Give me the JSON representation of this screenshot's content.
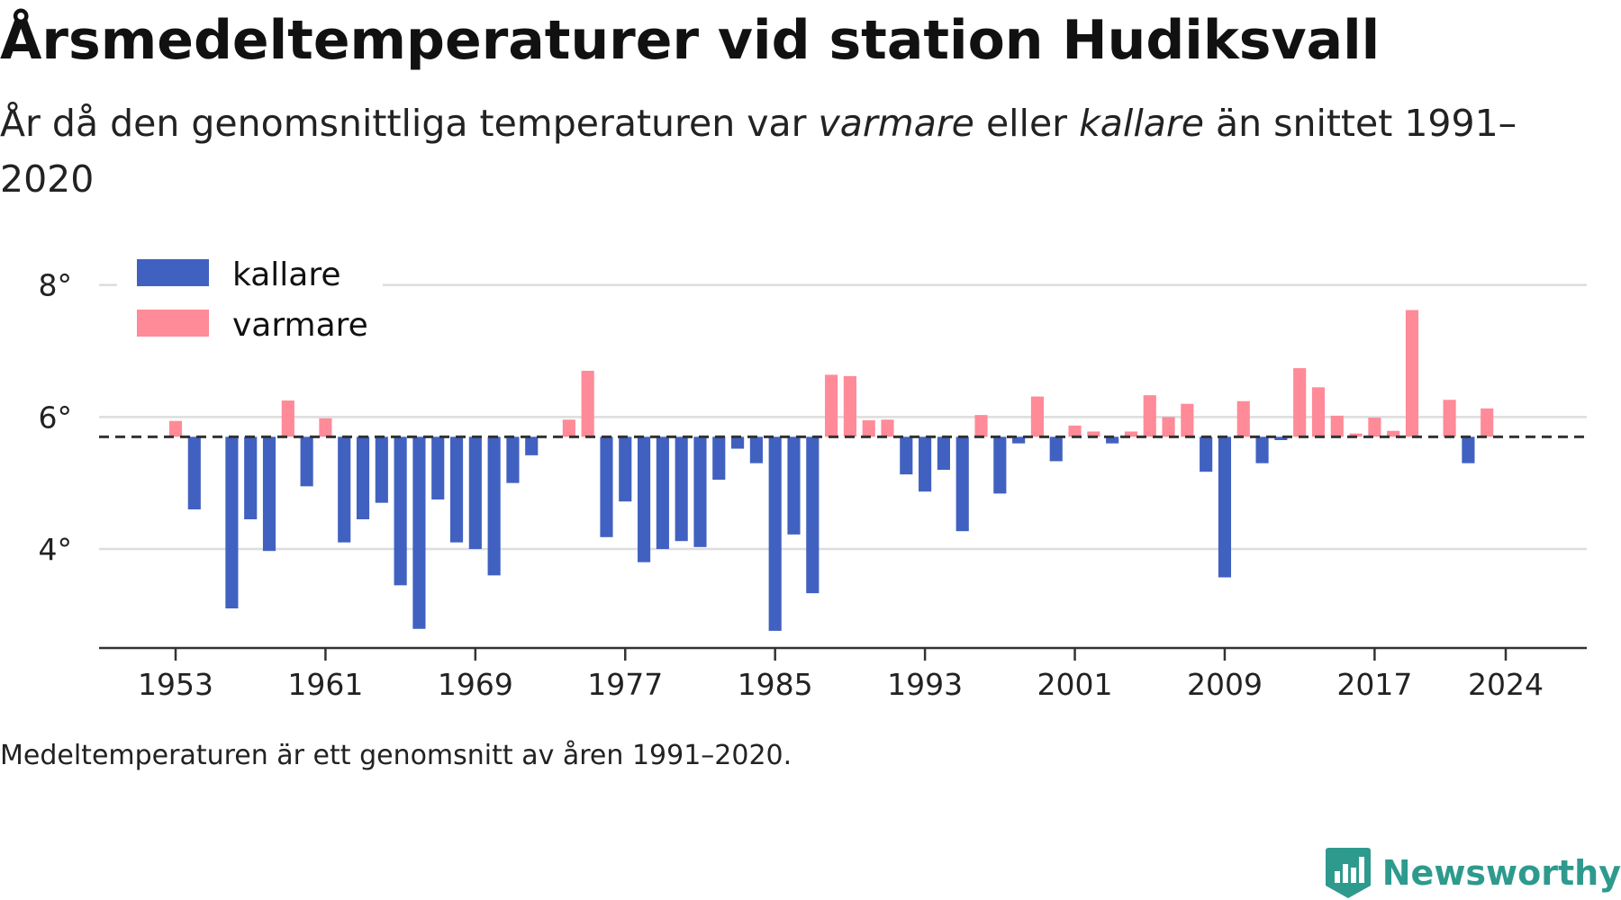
{
  "title": "Årsmedeltemperaturer vid station Hudiksvall",
  "subtitle": {
    "part1": "År då den genomsnittliga temperaturen var ",
    "warm_word": "varmare",
    "part2": " eller ",
    "cold_word": "kallare",
    "part3": " än snittet 1991–2020"
  },
  "footnote": "Medeltemperaturen är ett genomsnitt av åren 1991–2020.",
  "brand": "Newsworthy",
  "colors": {
    "colder": "#4161c1",
    "warmer": "#ff8a98",
    "grid": "#dddddd",
    "axis": "#333333",
    "baseline": "#333333",
    "brand": "#2e9a8e"
  },
  "icons": {
    "brand": "newsworthy-logo-icon"
  },
  "chart_data": {
    "type": "bar",
    "baseline": 5.7,
    "ylim": [
      2.5,
      8.5
    ],
    "yticks": [
      4,
      6,
      8
    ],
    "ytick_labels": [
      "4°",
      "6°",
      "8°"
    ],
    "xticks": [
      1953,
      1961,
      1969,
      1977,
      1985,
      1993,
      2001,
      2009,
      2017,
      2024
    ],
    "xtick_labels": [
      "1953",
      "1961",
      "1969",
      "1977",
      "1985",
      "1993",
      "2001",
      "2009",
      "2017",
      "2024"
    ],
    "grid": true,
    "legend_position": "top-left",
    "legend": [
      {
        "label": "kallare",
        "color": "#4161c1"
      },
      {
        "label": "varmare",
        "color": "#ff8a98"
      }
    ],
    "x": [
      1953,
      1954,
      1955,
      1956,
      1957,
      1958,
      1959,
      1960,
      1961,
      1962,
      1963,
      1964,
      1965,
      1966,
      1967,
      1968,
      1969,
      1970,
      1971,
      1972,
      1973,
      1974,
      1975,
      1976,
      1977,
      1978,
      1979,
      1980,
      1981,
      1982,
      1983,
      1984,
      1985,
      1986,
      1987,
      1988,
      1989,
      1990,
      1991,
      1992,
      1993,
      1994,
      1995,
      1996,
      1997,
      1998,
      1999,
      2000,
      2001,
      2002,
      2003,
      2004,
      2005,
      2006,
      2007,
      2008,
      2009,
      2010,
      2011,
      2012,
      2013,
      2014,
      2015,
      2016,
      2017,
      2018,
      2019,
      2020,
      2021,
      2022,
      2023,
      2024
    ],
    "values": [
      5.94,
      4.6,
      null,
      3.1,
      4.45,
      3.97,
      6.25,
      4.95,
      5.98,
      4.1,
      4.45,
      4.7,
      3.45,
      2.79,
      4.75,
      4.1,
      4.0,
      3.6,
      5.0,
      5.42,
      null,
      5.96,
      6.7,
      4.18,
      4.72,
      3.8,
      4.0,
      4.12,
      4.03,
      5.05,
      5.52,
      5.3,
      2.76,
      4.22,
      3.33,
      6.64,
      6.62,
      5.95,
      5.96,
      5.13,
      4.87,
      5.2,
      4.27,
      6.03,
      4.84,
      5.6,
      6.31,
      5.33,
      5.87,
      5.78,
      5.6,
      5.78,
      6.33,
      6.0,
      6.2,
      5.17,
      3.57,
      6.24,
      5.3,
      5.65,
      6.74,
      6.45,
      6.02,
      5.75,
      5.99,
      5.79,
      7.62,
      null,
      6.26,
      5.3,
      6.13,
      null
    ]
  }
}
